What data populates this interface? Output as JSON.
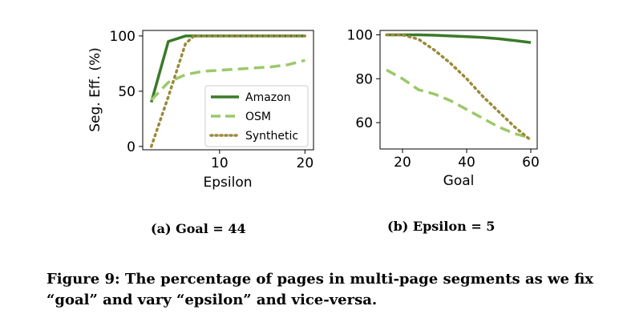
{
  "chart_data": [
    {
      "type": "line",
      "subcaption": "(a) Goal = 44",
      "xlabel": "Epsilon",
      "ylabel": "Seg. Eff. (%)",
      "xlim": [
        1,
        21
      ],
      "ylim": [
        -3,
        105
      ],
      "xticks": [
        10,
        20
      ],
      "yticks": [
        0,
        50,
        100
      ],
      "legend": "lower-right",
      "series": [
        {
          "name": "Amazon",
          "style": "solid",
          "color": "#3a7a2a",
          "x": [
            2,
            4,
            6,
            8,
            10,
            12,
            14,
            16,
            18,
            20
          ],
          "y": [
            40,
            95,
            100,
            100,
            100,
            100,
            100,
            100,
            100,
            100
          ]
        },
        {
          "name": "OSM",
          "style": "dashed",
          "color": "#9cc86a",
          "x": [
            2,
            4,
            6,
            8,
            10,
            12,
            14,
            16,
            18,
            20
          ],
          "y": [
            42,
            58,
            65,
            68,
            69,
            70,
            71,
            72,
            74,
            78
          ]
        },
        {
          "name": "Synthetic",
          "style": "dotted",
          "color": "#9b8a3a",
          "x": [
            2,
            4,
            6,
            7,
            8,
            10,
            12,
            14,
            16,
            18,
            20
          ],
          "y": [
            0,
            45,
            93,
            100,
            100,
            100,
            100,
            100,
            100,
            100,
            100
          ]
        }
      ]
    },
    {
      "type": "line",
      "subcaption": "(b) Epsilon = 5",
      "xlabel": "Goal",
      "ylabel": "",
      "xlim": [
        13,
        62
      ],
      "ylim": [
        48,
        102
      ],
      "xticks": [
        20,
        40,
        60
      ],
      "yticks": [
        60,
        80,
        100
      ],
      "series": [
        {
          "name": "Amazon",
          "style": "solid",
          "color": "#3a7a2a",
          "x": [
            15,
            20,
            25,
            30,
            35,
            40,
            45,
            50,
            55,
            60
          ],
          "y": [
            100,
            100,
            100,
            99.8,
            99.5,
            99.2,
            98.8,
            98.2,
            97.4,
            96.5
          ]
        },
        {
          "name": "OSM",
          "style": "dashed",
          "color": "#9cc86a",
          "x": [
            15,
            20,
            25,
            30,
            35,
            40,
            45,
            50,
            55,
            60
          ],
          "y": [
            84,
            80,
            75,
            73,
            70,
            66,
            62,
            58,
            55,
            53
          ]
        },
        {
          "name": "Synthetic",
          "style": "dotted",
          "color": "#9b8a3a",
          "x": [
            15,
            20,
            25,
            30,
            35,
            40,
            45,
            50,
            55,
            60
          ],
          "y": [
            100,
            100,
            98,
            93,
            87,
            80,
            72,
            65,
            58,
            52
          ]
        }
      ]
    }
  ],
  "caption": "Figure 9: The percentage of pages in multi-page segments as we fix “goal” and vary “epsilon” and vice-versa."
}
